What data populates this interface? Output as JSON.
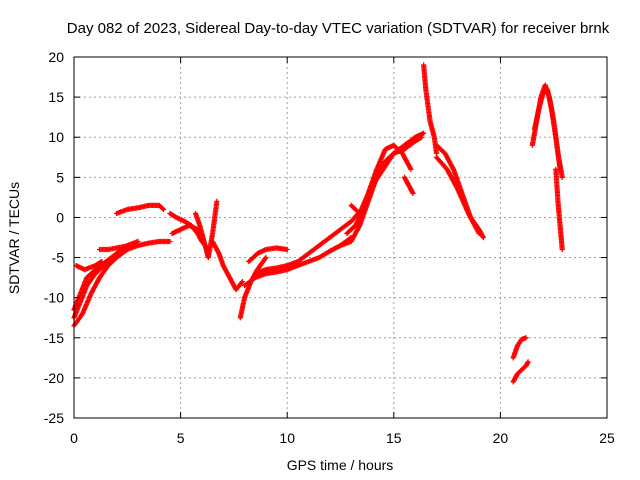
{
  "chart_data": {
    "type": "scatter",
    "title": "Day 082 of 2023, Sidereal Day-to-day VTEC variation (SDTVAR) for receiver brnk",
    "xlabel": "GPS time / hours",
    "ylabel": "SDTVAR / TECUs",
    "xlim": [
      0,
      25
    ],
    "ylim": [
      -25,
      20
    ],
    "xticks": [
      0,
      5,
      10,
      15,
      20,
      25
    ],
    "yticks": [
      -25,
      -20,
      -15,
      -10,
      -5,
      0,
      5,
      10,
      15,
      20
    ],
    "grid": true,
    "marker": "+",
    "series": [
      {
        "name": "SDTVAR",
        "color": "#ff0000",
        "tracks": [
          {
            "x": [
              0.0,
              0.4,
              0.8,
              1.2,
              1.6,
              2.0,
              2.5,
              3.0,
              3.5,
              4.0,
              4.5
            ],
            "y": [
              -13.5,
              -12.0,
              -9.5,
              -7.5,
              -6.0,
              -5.0,
              -4.0,
              -3.5,
              -3.2,
              -3.0,
              -3.0
            ]
          },
          {
            "x": [
              0.0,
              0.3,
              0.6,
              1.0,
              1.5,
              2.0,
              2.5,
              3.0
            ],
            "y": [
              -11.5,
              -9.5,
              -7.5,
              -6.5,
              -5.5,
              -4.5,
              -3.5,
              -3.0
            ]
          },
          {
            "x": [
              0.0,
              0.3,
              0.6,
              1.0,
              1.4,
              1.8,
              2.2
            ],
            "y": [
              -12.5,
              -10.5,
              -8.5,
              -7.0,
              -6.0,
              -5.0,
              -4.0
            ]
          },
          {
            "x": [
              0.1,
              0.5,
              1.0,
              1.3
            ],
            "y": [
              -6.0,
              -6.5,
              -6.0,
              -5.5
            ]
          },
          {
            "x": [
              1.2,
              1.6,
              2.0,
              2.4,
              2.8
            ],
            "y": [
              -4.0,
              -4.0,
              -3.8,
              -3.6,
              -3.4
            ]
          },
          {
            "x": [
              2.0,
              2.5,
              3.0,
              3.5,
              4.0,
              4.2
            ],
            "y": [
              0.5,
              1.0,
              1.2,
              1.5,
              1.5,
              1.0
            ]
          },
          {
            "x": [
              4.5,
              4.8,
              5.2,
              5.5,
              5.8,
              6.0,
              6.3
            ],
            "y": [
              0.5,
              0.0,
              -0.5,
              -1.0,
              -2.0,
              -3.0,
              -4.0
            ]
          },
          {
            "x": [
              4.6,
              5.0,
              5.4,
              5.8,
              6.0
            ],
            "y": [
              -2.0,
              -1.5,
              -1.0,
              -1.5,
              -2.5
            ]
          },
          {
            "x": [
              5.7,
              5.9,
              6.1,
              6.3,
              6.5,
              6.7
            ],
            "y": [
              0.5,
              -1.0,
              -3.0,
              -5.0,
              -2.0,
              2.0
            ]
          },
          {
            "x": [
              6.5,
              6.8,
              7.0,
              7.3,
              7.6,
              7.9
            ],
            "y": [
              -3.0,
              -4.5,
              -6.0,
              -7.5,
              -9.0,
              -8.0
            ]
          },
          {
            "x": [
              7.8,
              8.0,
              8.3,
              8.6,
              9.0
            ],
            "y": [
              -12.5,
              -10.0,
              -8.0,
              -6.5,
              -5.0
            ]
          },
          {
            "x": [
              8.0,
              8.5,
              9.0,
              9.5,
              10.0,
              10.5,
              11.0,
              11.5,
              12.0,
              12.5,
              13.0
            ],
            "y": [
              -8.5,
              -7.5,
              -7.0,
              -6.8,
              -6.5,
              -6.0,
              -5.5,
              -5.0,
              -4.2,
              -3.5,
              -2.5
            ]
          },
          {
            "x": [
              8.5,
              9.0,
              9.5,
              10.0,
              10.5,
              11.0,
              11.5,
              12.0,
              12.5,
              13.0,
              13.5
            ],
            "y": [
              -7.0,
              -6.5,
              -6.3,
              -6.0,
              -5.5,
              -4.5,
              -3.5,
              -2.5,
              -1.5,
              -0.5,
              1.0
            ]
          },
          {
            "x": [
              8.2,
              8.6,
              9.0,
              9.5,
              10.0
            ],
            "y": [
              -5.5,
              -4.5,
              -4.0,
              -3.8,
              -4.0
            ]
          },
          {
            "x": [
              12.5,
              13.0,
              13.4,
              13.8,
              14.2,
              14.6,
              15.0,
              15.5,
              16.0,
              16.3
            ],
            "y": [
              -3.5,
              -3.0,
              -1.0,
              2.0,
              5.0,
              7.0,
              8.0,
              8.5,
              9.5,
              10.0
            ]
          },
          {
            "x": [
              12.8,
              13.2,
              13.6,
              14.0,
              14.5,
              15.0,
              15.5,
              16.0,
              16.4
            ],
            "y": [
              -2.0,
              -1.0,
              1.0,
              4.0,
              6.0,
              8.0,
              9.0,
              10.0,
              10.5
            ]
          },
          {
            "x": [
              13.0,
              13.4,
              13.8,
              14.2,
              14.6,
              15.0,
              15.4,
              15.8
            ],
            "y": [
              1.5,
              0.5,
              3.0,
              6.0,
              8.5,
              9.0,
              8.0,
              6.0
            ]
          },
          {
            "x": [
              15.5,
              15.7,
              15.9
            ],
            "y": [
              5.0,
              4.0,
              3.0
            ]
          },
          {
            "x": [
              16.4,
              16.5,
              16.6,
              16.7,
              16.8,
              16.9,
              17.0
            ],
            "y": [
              19.0,
              16.0,
              14.0,
              12.0,
              11.0,
              10.0,
              8.0
            ]
          },
          {
            "x": [
              17.0,
              17.4,
              17.8,
              18.2,
              18.6,
              19.0,
              19.2
            ],
            "y": [
              9.0,
              8.0,
              6.0,
              3.0,
              0.0,
              -1.5,
              -2.5
            ]
          },
          {
            "x": [
              17.0,
              17.5,
              18.0,
              18.5,
              19.0
            ],
            "y": [
              7.5,
              6.0,
              3.5,
              0.5,
              -2.0
            ]
          },
          {
            "x": [
              20.6,
              20.8,
              21.0,
              21.2
            ],
            "y": [
              -17.5,
              -16.0,
              -15.2,
              -15.0
            ]
          },
          {
            "x": [
              20.6,
              20.8,
              21.0,
              21.2,
              21.3
            ],
            "y": [
              -20.5,
              -19.5,
              -19.0,
              -18.5,
              -18.0
            ]
          },
          {
            "x": [
              21.5,
              21.7,
              21.9,
              22.1,
              22.3,
              22.5,
              22.7,
              22.9
            ],
            "y": [
              9.0,
              12.0,
              15.0,
              16.5,
              15.0,
              12.0,
              8.0,
              5.0
            ]
          },
          {
            "x": [
              21.6,
              21.8,
              22.0,
              22.2,
              22.4,
              22.6,
              22.8
            ],
            "y": [
              11.0,
              13.5,
              15.5,
              16.0,
              13.5,
              10.0,
              6.0
            ]
          },
          {
            "x": [
              22.6,
              22.7,
              22.8,
              22.9
            ],
            "y": [
              6.0,
              2.0,
              -1.0,
              -4.0
            ]
          }
        ]
      }
    ]
  }
}
